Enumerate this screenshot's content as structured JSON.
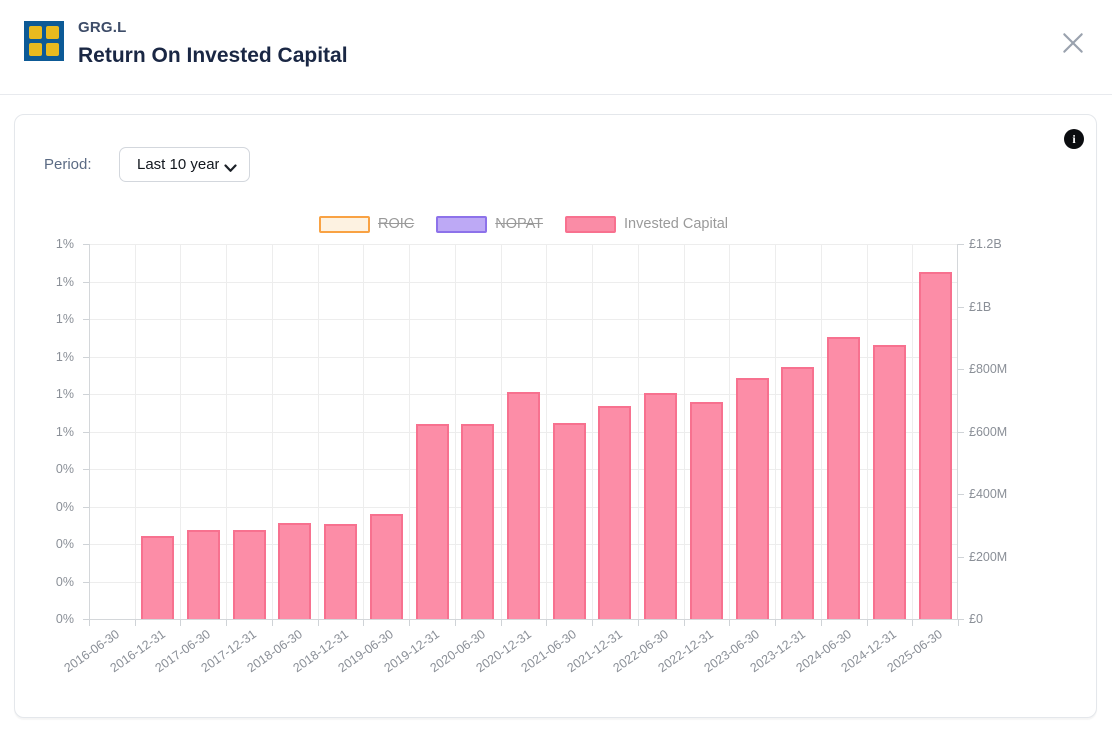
{
  "header": {
    "ticker": "GRG.L",
    "title": "Return On Invested Capital"
  },
  "toolbar": {
    "period_label": "Period:",
    "period_value": "Last 10 years"
  },
  "info_icon_glyph": "i",
  "legend": [
    {
      "label": "ROIC",
      "fill": "#fdf2e1",
      "border": "#f9a243",
      "struck": true
    },
    {
      "label": "NOPAT",
      "fill": "#bda9f5",
      "border": "#8d72ea",
      "struck": true
    },
    {
      "label": "Invested Capital",
      "fill": "#fa8ca6",
      "border": "#f8718f",
      "struck": false
    }
  ],
  "chart_data": {
    "type": "bar",
    "categories": [
      "2016-06-30",
      "2016-12-31",
      "2017-06-30",
      "2017-12-31",
      "2018-06-30",
      "2018-12-31",
      "2019-06-30",
      "2019-12-31",
      "2020-06-30",
      "2020-12-31",
      "2021-06-30",
      "2021-12-31",
      "2022-06-30",
      "2022-12-31",
      "2023-06-30",
      "2023-12-31",
      "2024-06-30",
      "2024-12-31",
      "2025-06-30"
    ],
    "series": [
      {
        "name": "ROIC",
        "axis": "left-percent",
        "visible": false,
        "values": []
      },
      {
        "name": "NOPAT",
        "axis": "left-percent",
        "visible": false,
        "values": []
      },
      {
        "name": "Invested Capital",
        "axis": "right-gbp",
        "visible": true,
        "unit": "GBP millions",
        "values": [
          null,
          265,
          286,
          284,
          307,
          303,
          335,
          624,
          623,
          727,
          627,
          682,
          724,
          694,
          772,
          807,
          903,
          878,
          1109
        ]
      }
    ],
    "left_axis_ticks": [
      "1%",
      "1%",
      "1%",
      "1%",
      "1%",
      "1%",
      "0%",
      "0%",
      "0%",
      "0%",
      "0%"
    ],
    "right_axis_ticks": [
      "£1.2B",
      "£1B",
      "£800M",
      "£600M",
      "£400M",
      "£200M",
      "£0"
    ],
    "right_axis_range_m": [
      0,
      1200
    ],
    "grid": true,
    "legend_position": "top",
    "colors": {
      "bar_fill": "#fc8da7",
      "bar_border": "#f7718f"
    }
  }
}
